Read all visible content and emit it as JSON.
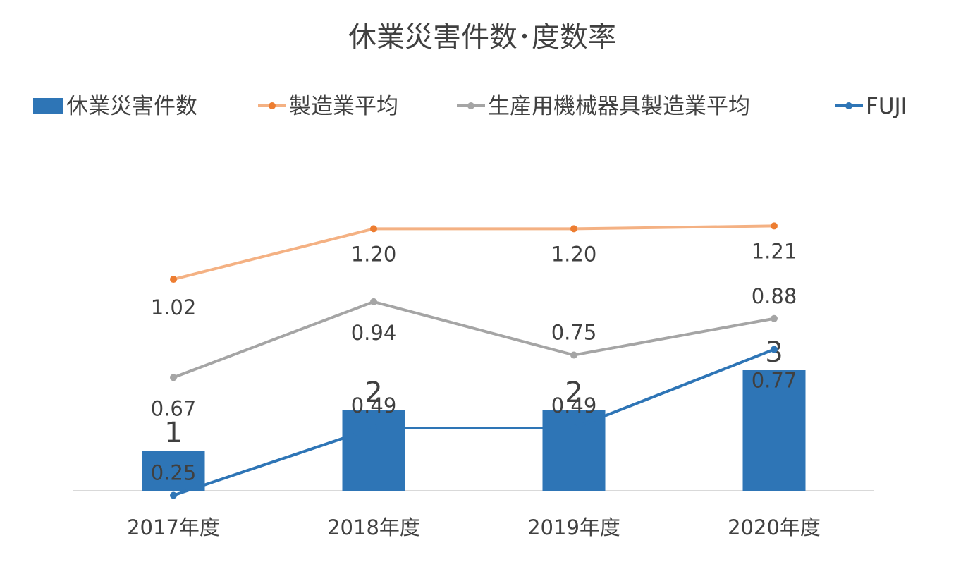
{
  "chart_data": {
    "type": "bar+line",
    "title": "休業災害件数･度数率",
    "categories": [
      "2017年度",
      "2018年度",
      "2019年度",
      "2020年度"
    ],
    "bars": {
      "name": "休業災害件数",
      "values": [
        1,
        2,
        2,
        3
      ],
      "color": "#2E75B6",
      "axis_range": [
        0,
        10.5
      ]
    },
    "series": [
      {
        "name": "製造業平均",
        "values": [
          1.02,
          1.2,
          1.2,
          1.21
        ],
        "labels": [
          "1.02",
          "1.20",
          "1.20",
          "1.21"
        ],
        "color": "#F4B183",
        "marker_color": "#ED7D31"
      },
      {
        "name": "生産用機械器具製造業平均",
        "values": [
          0.67,
          0.94,
          0.75,
          0.88
        ],
        "labels": [
          "0.67",
          "0.94",
          "0.75",
          "0.88"
        ],
        "color": "#A5A5A5",
        "marker_color": "#A5A5A5"
      },
      {
        "name": "FUJI",
        "values": [
          0.25,
          0.49,
          0.49,
          0.77
        ],
        "labels": [
          "0.25",
          "0.49",
          "0.49",
          "0.77"
        ],
        "color": "#2E75B6",
        "marker_color": "#2E75B6"
      }
    ],
    "line_axis_range": [
      0,
      1.45
    ],
    "legend_position": "top",
    "grid": false
  }
}
